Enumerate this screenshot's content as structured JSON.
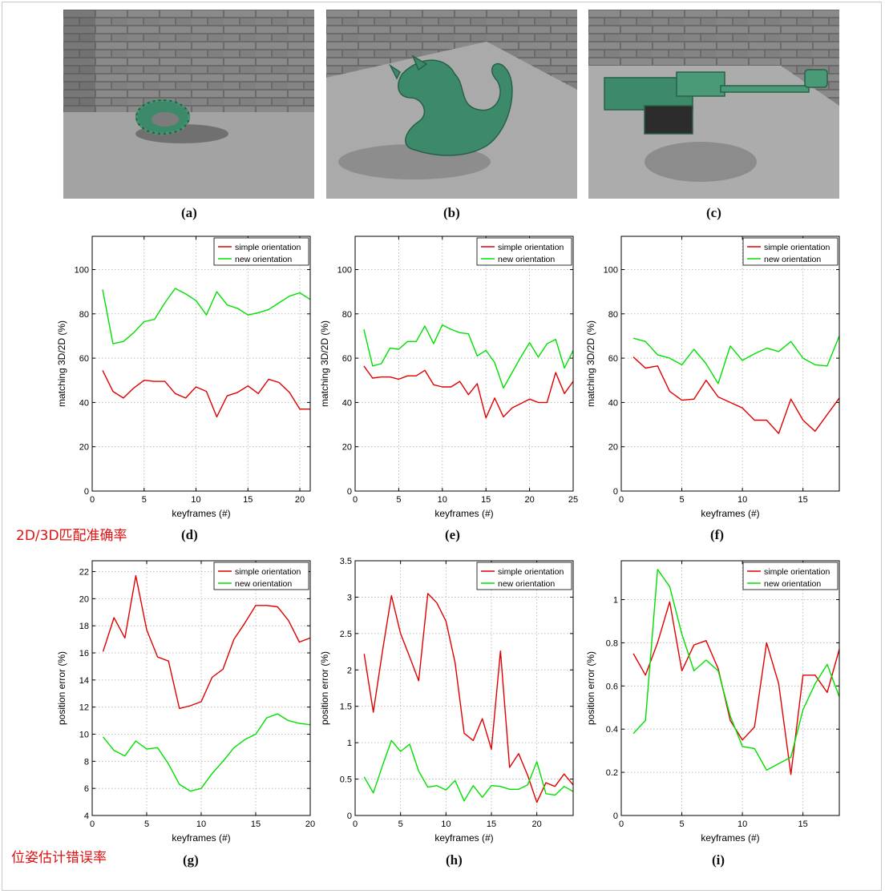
{
  "figure_labels": [
    "(a)",
    "(b)",
    "(c)",
    "(d)",
    "(e)",
    "(f)",
    "(g)",
    "(h)",
    "(i)"
  ],
  "annotations": {
    "matching_note": "2D/3D匹配准确率",
    "error_note": "位姿估计错误率"
  },
  "colors": {
    "simple": "#e00000",
    "new": "#00e000",
    "annotation": "#e01010",
    "model": "#3d8a6a"
  },
  "photos": [
    {
      "label": "(a)",
      "object": "torus"
    },
    {
      "label": "(b)",
      "object": "dragon"
    },
    {
      "label": "(c)",
      "object": "machine"
    }
  ],
  "chart_data": [
    {
      "type": "line",
      "label": "(d)",
      "xlabel": "keyframes (#)",
      "ylabel": "matching 3D/2D (%)",
      "xlim": [
        0,
        21
      ],
      "ylim": [
        0,
        115
      ],
      "xticks": [
        0,
        5,
        10,
        15,
        20
      ],
      "yticks": [
        0,
        20,
        40,
        60,
        80,
        100
      ],
      "grid": true,
      "legend_position": "top-right",
      "x": [
        1,
        2,
        3,
        4,
        5,
        6,
        7,
        8,
        9,
        10,
        11,
        12,
        13,
        14,
        15,
        16,
        17,
        18,
        19,
        20,
        21
      ],
      "series": [
        {
          "name": "simple orientation",
          "color": "#e00000",
          "values": [
            54.5,
            45,
            42,
            46.5,
            50,
            49.5,
            49.5,
            44,
            42,
            47,
            45,
            33.5,
            43,
            44.5,
            47.5,
            44,
            50.5,
            49,
            44.5,
            37,
            37
          ]
        },
        {
          "name": "new orientation",
          "color": "#00e000",
          "values": [
            91,
            66.5,
            67.5,
            71.5,
            76.5,
            77.5,
            85,
            91.5,
            89,
            86,
            79.5,
            90,
            84,
            82.5,
            79.5,
            80.5,
            82,
            85,
            88,
            89.5,
            86.5
          ]
        }
      ]
    },
    {
      "type": "line",
      "label": "(e)",
      "xlabel": "keyframes (#)",
      "ylabel": "matching 3D/2D (%)",
      "xlim": [
        0,
        25
      ],
      "ylim": [
        0,
        115
      ],
      "xticks": [
        0,
        5,
        10,
        15,
        20,
        25
      ],
      "yticks": [
        0,
        20,
        40,
        60,
        80,
        100
      ],
      "grid": true,
      "legend_position": "top-right",
      "x": [
        1,
        2,
        3,
        4,
        5,
        6,
        7,
        8,
        9,
        10,
        11,
        12,
        13,
        14,
        15,
        16,
        17,
        18,
        19,
        20,
        21,
        22,
        23,
        24,
        25
      ],
      "series": [
        {
          "name": "simple orientation",
          "color": "#e00000",
          "values": [
            56.5,
            51,
            51.5,
            51.5,
            50.5,
            52,
            52,
            54.5,
            48,
            47,
            47,
            49.5,
            43.5,
            48.5,
            33,
            42,
            33.5,
            37.5,
            39.5,
            41.5,
            40,
            40,
            53.5,
            44,
            49.5
          ]
        },
        {
          "name": "new orientation",
          "color": "#00e000",
          "values": [
            73,
            56.5,
            57.5,
            64.5,
            64,
            67.5,
            67.5,
            74.5,
            66.5,
            75,
            73,
            71.5,
            71,
            61,
            63.5,
            58,
            46.5,
            53.5,
            60.5,
            67,
            60.5,
            66.5,
            68.5,
            55.5,
            63.5
          ]
        }
      ]
    },
    {
      "type": "line",
      "label": "(f)",
      "xlabel": "keyframes (#)",
      "ylabel": "matching 3D/2D (%)",
      "xlim": [
        0,
        18
      ],
      "ylim": [
        0,
        115
      ],
      "xticks": [
        0,
        5,
        10,
        15
      ],
      "yticks": [
        0,
        20,
        40,
        60,
        80,
        100
      ],
      "grid": true,
      "legend_position": "top-right",
      "x": [
        1,
        2,
        3,
        4,
        5,
        6,
        7,
        8,
        9,
        10,
        11,
        12,
        13,
        14,
        15,
        16,
        17,
        18
      ],
      "series": [
        {
          "name": "simple orientation",
          "color": "#e00000",
          "values": [
            60.5,
            55.5,
            56.5,
            45,
            41,
            41.5,
            50,
            42.5,
            40,
            37.5,
            32,
            32,
            26,
            41.5,
            32,
            27,
            34.5,
            42
          ]
        },
        {
          "name": "new orientation",
          "color": "#00e000",
          "values": [
            69,
            67.5,
            61.5,
            60,
            57,
            64,
            57.5,
            48.5,
            65.5,
            59,
            62,
            64.5,
            63,
            67.5,
            60,
            57,
            56.5,
            70
          ]
        }
      ]
    },
    {
      "type": "line",
      "label": "(g)",
      "xlabel": "keyframes (#)",
      "ylabel": "position error (%)",
      "xlim": [
        0,
        20
      ],
      "ylim": [
        4,
        22.8
      ],
      "xticks": [
        0,
        5,
        10,
        15,
        20
      ],
      "yticks": [
        4,
        6,
        8,
        10,
        12,
        14,
        16,
        18,
        20,
        22
      ],
      "grid": true,
      "legend_position": "top-right",
      "x": [
        1,
        2,
        3,
        4,
        5,
        6,
        7,
        8,
        9,
        10,
        11,
        12,
        13,
        14,
        15,
        16,
        17,
        18,
        19,
        20
      ],
      "series": [
        {
          "name": "simple orientation",
          "color": "#e00000",
          "values": [
            16.1,
            18.6,
            17.1,
            21.7,
            17.7,
            15.7,
            15.4,
            11.9,
            12.1,
            12.4,
            14.2,
            14.8,
            17.0,
            18.2,
            19.5,
            19.5,
            19.4,
            18.4,
            16.8,
            17.1
          ]
        },
        {
          "name": "new orientation",
          "color": "#00e000",
          "values": [
            9.8,
            8.8,
            8.4,
            9.5,
            8.9,
            9.0,
            7.8,
            6.3,
            5.8,
            6.0,
            7.1,
            8.0,
            9.0,
            9.6,
            10.0,
            11.2,
            11.5,
            11.0,
            10.8,
            10.7
          ]
        }
      ]
    },
    {
      "type": "line",
      "label": "(h)",
      "xlabel": "keyframes (#)",
      "ylabel": "position error (%)",
      "xlim": [
        0,
        24
      ],
      "ylim": [
        0,
        3.5
      ],
      "xticks": [
        0,
        5,
        10,
        15,
        20
      ],
      "yticks": [
        0,
        0.5,
        1,
        1.5,
        2,
        2.5,
        3,
        3.5
      ],
      "grid": true,
      "legend_position": "top-right",
      "x": [
        1,
        2,
        3,
        4,
        5,
        6,
        7,
        8,
        9,
        10,
        11,
        12,
        13,
        14,
        15,
        16,
        17,
        18,
        19,
        20,
        21,
        22,
        23,
        24
      ],
      "series": [
        {
          "name": "simple orientation",
          "color": "#e00000",
          "values": [
            2.22,
            1.42,
            2.25,
            3.02,
            2.5,
            2.18,
            1.85,
            3.05,
            2.92,
            2.67,
            2.1,
            1.13,
            1.03,
            1.33,
            0.91,
            2.26,
            0.66,
            0.85,
            0.55,
            0.18,
            0.45,
            0.4,
            0.57,
            0.42
          ]
        },
        {
          "name": "new orientation",
          "color": "#00e000",
          "values": [
            0.53,
            0.31,
            0.68,
            1.03,
            0.88,
            0.98,
            0.61,
            0.39,
            0.41,
            0.35,
            0.48,
            0.2,
            0.41,
            0.25,
            0.41,
            0.4,
            0.36,
            0.36,
            0.42,
            0.74,
            0.3,
            0.28,
            0.4,
            0.33
          ]
        }
      ]
    },
    {
      "type": "line",
      "label": "(i)",
      "xlabel": "keyframes (#)",
      "ylabel": "position error (%)",
      "xlim": [
        0,
        18
      ],
      "ylim": [
        0,
        1.18
      ],
      "xticks": [
        0,
        5,
        10,
        15
      ],
      "yticks": [
        0,
        0.2,
        0.4,
        0.6,
        0.8,
        1
      ],
      "grid": true,
      "legend_position": "top-right",
      "x": [
        1,
        2,
        3,
        4,
        5,
        6,
        7,
        8,
        9,
        10,
        11,
        12,
        13,
        14,
        15,
        16,
        17,
        18
      ],
      "series": [
        {
          "name": "simple orientation",
          "color": "#e00000",
          "values": [
            0.75,
            0.65,
            0.8,
            0.99,
            0.67,
            0.79,
            0.81,
            0.68,
            0.44,
            0.35,
            0.41,
            0.8,
            0.61,
            0.19,
            0.65,
            0.65,
            0.57,
            0.77
          ]
        },
        {
          "name": "new orientation",
          "color": "#00e000",
          "values": [
            0.38,
            0.44,
            1.14,
            1.06,
            0.84,
            0.67,
            0.72,
            0.67,
            0.46,
            0.32,
            0.31,
            0.21,
            0.24,
            0.27,
            0.49,
            0.61,
            0.7,
            0.55
          ]
        }
      ]
    }
  ]
}
